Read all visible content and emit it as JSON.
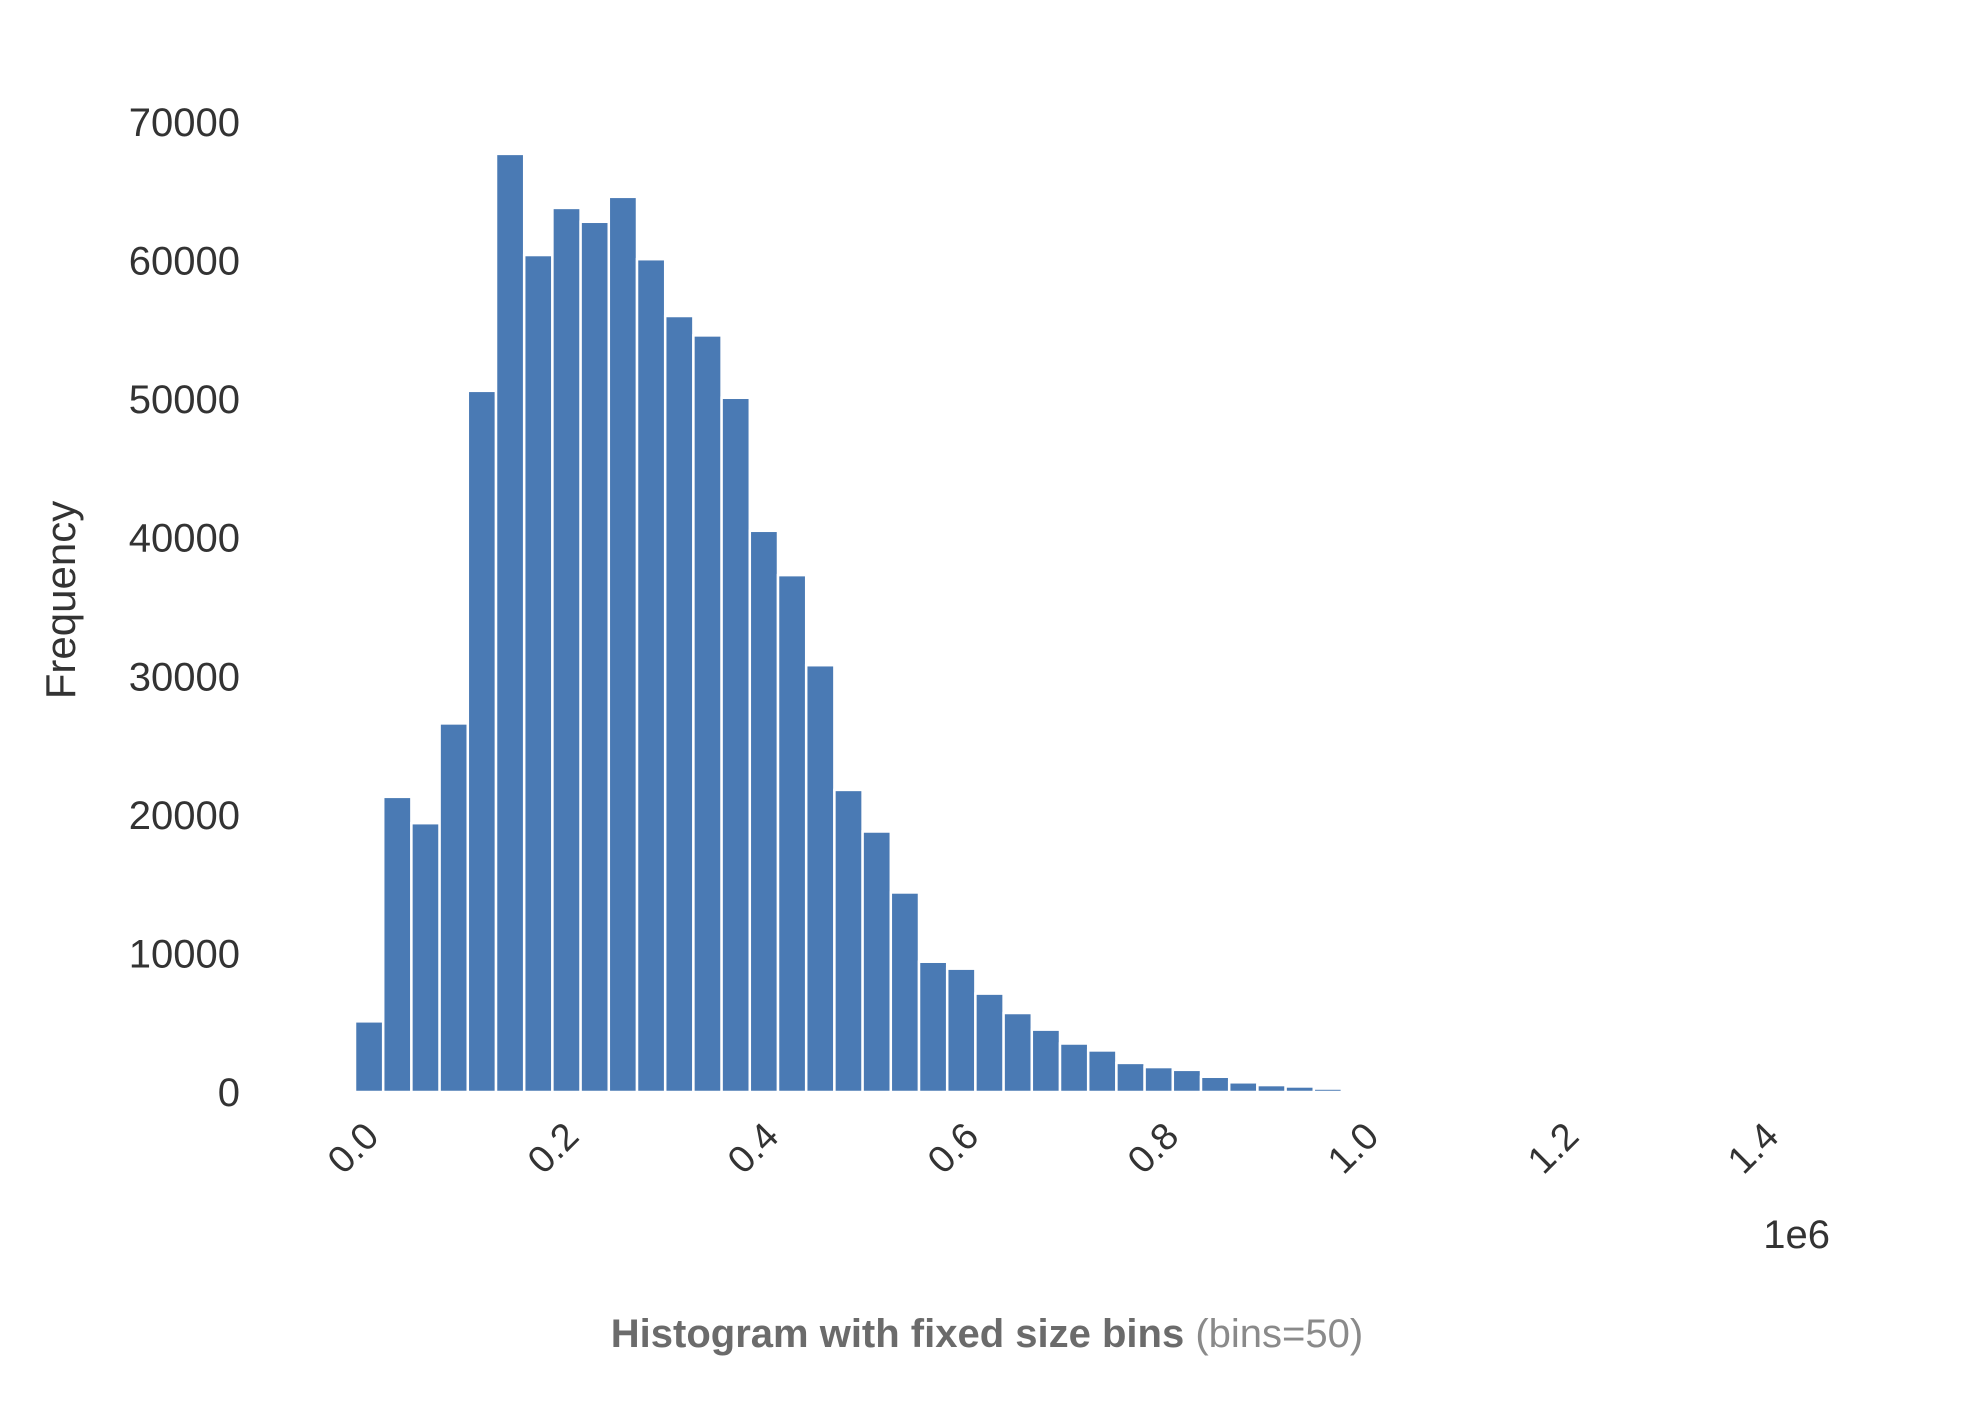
{
  "chart_data": {
    "type": "bar",
    "title": "",
    "xlabel": "",
    "ylabel": "Frequency",
    "x_offset_label": "1e6",
    "x_ticks": [
      "0.0",
      "0.2",
      "0.4",
      "0.6",
      "0.8",
      "1.0",
      "1.2",
      "1.4"
    ],
    "y_ticks": [
      "0",
      "10000",
      "20000",
      "30000",
      "40000",
      "50000",
      "60000",
      "70000"
    ],
    "xlim": [
      0,
      1.4
    ],
    "ylim": [
      0,
      70000
    ],
    "grid": false,
    "bin_start": 0.0,
    "bin_width": 0.0282,
    "bin_unit": "1e6",
    "values": [
      5100,
      21300,
      19400,
      26600,
      50600,
      67700,
      60400,
      63800,
      62800,
      64600,
      60100,
      56000,
      54600,
      50100,
      40500,
      37300,
      30800,
      21800,
      18800,
      14400,
      9400,
      8900,
      7100,
      5700,
      4500,
      3500,
      3000,
      2100,
      1800,
      1600,
      1100,
      700,
      500,
      400,
      250,
      150,
      100,
      70,
      50,
      30,
      20,
      15,
      10,
      8,
      5,
      3,
      2,
      1,
      1,
      1
    ],
    "series": [
      {
        "name": "",
        "color": "#4a7ab4"
      }
    ]
  },
  "caption": {
    "bold": "Histogram with fixed size bins",
    "light": "(bins=50)"
  },
  "colors": {
    "bar": "#4a7ab4",
    "bar_edge": "#ffffff",
    "text": "#333333",
    "caption": "#6d6d6d"
  }
}
